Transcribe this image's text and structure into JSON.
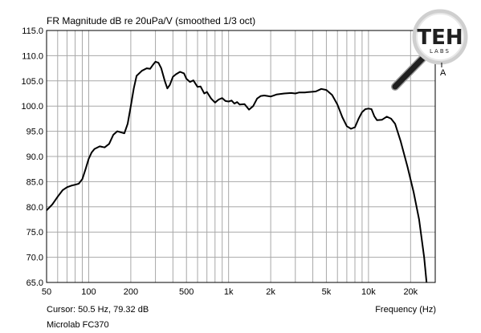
{
  "chart_data": {
    "type": "line",
    "title": "FR Magnitude dB re 20uPa/V (smoothed 1/3 oct)",
    "xlabel": "Frequency (Hz)",
    "ylabel": "",
    "x_scale": "log",
    "xlim": [
      50,
      30000
    ],
    "ylim": [
      65,
      115
    ],
    "grid": true,
    "x_tick_labels": [
      {
        "value": 50,
        "label": "50"
      },
      {
        "value": 100,
        "label": "100"
      },
      {
        "value": 200,
        "label": "200"
      },
      {
        "value": 500,
        "label": "500"
      },
      {
        "value": 1000,
        "label": "1k"
      },
      {
        "value": 2000,
        "label": "2k"
      },
      {
        "value": 5000,
        "label": "5k"
      },
      {
        "value": 10000,
        "label": "10k"
      },
      {
        "value": 20000,
        "label": "20k"
      }
    ],
    "y_tick_labels": [
      "65.0",
      "70.0",
      "75.0",
      "80.0",
      "85.0",
      "90.0",
      "95.0",
      "100.0",
      "105.0",
      "110.0",
      "115.0"
    ],
    "series": [
      {
        "name": "",
        "points": [
          [
            50,
            79.3
          ],
          [
            55,
            80.5
          ],
          [
            60,
            82
          ],
          [
            65,
            83.3
          ],
          [
            70,
            83.9
          ],
          [
            75,
            84.2
          ],
          [
            80,
            84.4
          ],
          [
            85,
            84.6
          ],
          [
            90,
            85.5
          ],
          [
            95,
            87.5
          ],
          [
            100,
            89.5
          ],
          [
            105,
            90.8
          ],
          [
            110,
            91.5
          ],
          [
            120,
            92.0
          ],
          [
            130,
            91.8
          ],
          [
            140,
            92.5
          ],
          [
            150,
            94.3
          ],
          [
            160,
            95.0
          ],
          [
            170,
            94.8
          ],
          [
            180,
            94.6
          ],
          [
            190,
            96.5
          ],
          [
            200,
            100.0
          ],
          [
            210,
            103.5
          ],
          [
            220,
            106.0
          ],
          [
            240,
            107.0
          ],
          [
            260,
            107.5
          ],
          [
            275,
            107.4
          ],
          [
            290,
            108.3
          ],
          [
            300,
            108.8
          ],
          [
            315,
            108.6
          ],
          [
            330,
            107.5
          ],
          [
            350,
            105.0
          ],
          [
            365,
            103.5
          ],
          [
            380,
            104.2
          ],
          [
            400,
            105.8
          ],
          [
            420,
            106.3
          ],
          [
            450,
            106.8
          ],
          [
            480,
            106.5
          ],
          [
            500,
            105.4
          ],
          [
            530,
            104.8
          ],
          [
            560,
            105.1
          ],
          [
            600,
            103.8
          ],
          [
            630,
            103.9
          ],
          [
            670,
            102.5
          ],
          [
            700,
            102.8
          ],
          [
            750,
            101.5
          ],
          [
            800,
            100.7
          ],
          [
            850,
            101.3
          ],
          [
            900,
            101.6
          ],
          [
            950,
            101.0
          ],
          [
            1000,
            100.9
          ],
          [
            1050,
            101.1
          ],
          [
            1100,
            100.5
          ],
          [
            1150,
            100.8
          ],
          [
            1200,
            100.3
          ],
          [
            1300,
            100.4
          ],
          [
            1400,
            99.3
          ],
          [
            1500,
            100.0
          ],
          [
            1600,
            101.5
          ],
          [
            1700,
            102.0
          ],
          [
            1800,
            102.1
          ],
          [
            1900,
            102.0
          ],
          [
            2000,
            101.9
          ],
          [
            2200,
            102.3
          ],
          [
            2500,
            102.5
          ],
          [
            2800,
            102.6
          ],
          [
            3000,
            102.5
          ],
          [
            3200,
            102.7
          ],
          [
            3500,
            102.7
          ],
          [
            3800,
            102.8
          ],
          [
            4200,
            102.9
          ],
          [
            4600,
            103.4
          ],
          [
            5000,
            103.2
          ],
          [
            5500,
            102.2
          ],
          [
            6000,
            100.3
          ],
          [
            6500,
            97.8
          ],
          [
            7000,
            96.0
          ],
          [
            7500,
            95.5
          ],
          [
            8000,
            95.8
          ],
          [
            8500,
            97.5
          ],
          [
            9000,
            98.8
          ],
          [
            9500,
            99.4
          ],
          [
            10000,
            99.5
          ],
          [
            10500,
            99.4
          ],
          [
            11000,
            98.0
          ],
          [
            11500,
            97.2
          ],
          [
            12500,
            97.3
          ],
          [
            13500,
            97.9
          ],
          [
            14500,
            97.5
          ],
          [
            15500,
            96.5
          ],
          [
            17000,
            93.0
          ],
          [
            19000,
            88.0
          ],
          [
            21000,
            83.0
          ],
          [
            23000,
            77.5
          ],
          [
            25000,
            70.0
          ],
          [
            26000,
            65.0
          ]
        ]
      }
    ],
    "cursor_readout": "Cursor: 50.5 Hz, 79.32 dB",
    "caption": "Microlab FC370",
    "marker_label": "A"
  },
  "logo": {
    "text_main": "TEH",
    "text_sub": "LABS"
  },
  "colors": {
    "background": "#ffffff",
    "grid": "#a8a8a8",
    "frame": "#000000",
    "curve": "#000000",
    "logo_dark": "#202020",
    "logo_light": "#cfcfcf"
  }
}
